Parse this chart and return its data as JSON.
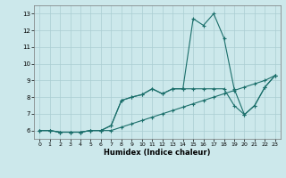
{
  "title": "",
  "xlabel": "Humidex (Indice chaleur)",
  "xlim": [
    -0.5,
    23.5
  ],
  "ylim": [
    5.5,
    13.5
  ],
  "xticks": [
    0,
    1,
    2,
    3,
    4,
    5,
    6,
    7,
    8,
    9,
    10,
    11,
    12,
    13,
    14,
    15,
    16,
    17,
    18,
    19,
    20,
    21,
    22,
    23
  ],
  "yticks": [
    6,
    7,
    8,
    9,
    10,
    11,
    12,
    13
  ],
  "bg_color": "#cce8eb",
  "line_color": "#1a6e6a",
  "grid_color": "#aacdd2",
  "line1_x": [
    0,
    1,
    2,
    3,
    4,
    5,
    6,
    7,
    8,
    9,
    10,
    11,
    12,
    13,
    14,
    15,
    16,
    17,
    18,
    19,
    20,
    21,
    22,
    23
  ],
  "line1_y": [
    6.0,
    6.0,
    5.9,
    5.9,
    5.9,
    6.0,
    6.0,
    6.0,
    6.2,
    6.4,
    6.6,
    6.8,
    7.0,
    7.2,
    7.4,
    7.6,
    7.8,
    8.0,
    8.2,
    8.4,
    8.6,
    8.8,
    9.0,
    9.3
  ],
  "line2_x": [
    0,
    1,
    2,
    3,
    4,
    5,
    6,
    7,
    8,
    9,
    10,
    11,
    12,
    13,
    14,
    15,
    16,
    17,
    18,
    19,
    20,
    21,
    22,
    23
  ],
  "line2_y": [
    6.0,
    6.0,
    5.9,
    5.9,
    5.9,
    6.0,
    6.0,
    6.3,
    7.8,
    8.0,
    8.15,
    8.5,
    8.2,
    8.5,
    8.5,
    8.5,
    8.5,
    8.5,
    8.5,
    7.5,
    6.95,
    7.5,
    8.6,
    9.3
  ],
  "line3_x": [
    0,
    1,
    2,
    3,
    4,
    5,
    6,
    7,
    8,
    9,
    10,
    11,
    12,
    13,
    14,
    15,
    16,
    17,
    18,
    19,
    20,
    21,
    22,
    23
  ],
  "line3_y": [
    6.0,
    6.0,
    5.9,
    5.9,
    5.9,
    6.0,
    6.0,
    6.3,
    7.8,
    8.0,
    8.15,
    8.5,
    8.2,
    8.5,
    8.5,
    12.7,
    12.3,
    13.0,
    11.55,
    8.5,
    6.95,
    7.5,
    8.6,
    9.3
  ]
}
